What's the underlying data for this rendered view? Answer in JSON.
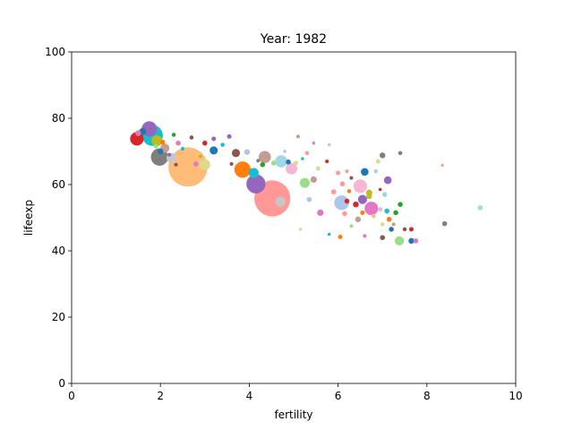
{
  "chart_data": {
    "type": "scatter",
    "title": "Year: 1982",
    "xlabel": "fertility",
    "ylabel": "lifeexp",
    "xlim": [
      0,
      10
    ],
    "ylim": [
      0,
      100
    ],
    "xticks": [
      0,
      2,
      4,
      6,
      8,
      10
    ],
    "yticks": [
      0,
      20,
      40,
      60,
      80,
      100
    ],
    "grid": false,
    "points": [
      {
        "x": 2.62,
        "y": 65.3,
        "size": 920,
        "color": "#ffbb78"
      },
      {
        "x": 4.52,
        "y": 55.8,
        "size": 780,
        "color": "#ff9896"
      },
      {
        "x": 1.82,
        "y": 74.8,
        "size": 260,
        "color": "#17becf"
      },
      {
        "x": 1.75,
        "y": 76.8,
        "size": 140,
        "color": "#9467bd"
      },
      {
        "x": 1.47,
        "y": 73.8,
        "size": 110,
        "color": "#d62728"
      },
      {
        "x": 1.98,
        "y": 68.3,
        "size": 180,
        "color": "#7f7f7f"
      },
      {
        "x": 1.92,
        "y": 73.2,
        "size": 70,
        "color": "#bcbd22"
      },
      {
        "x": 2.1,
        "y": 71.0,
        "size": 50,
        "color": "#c49c94"
      },
      {
        "x": 2.25,
        "y": 68.0,
        "size": 60,
        "color": "#c7c7c7"
      },
      {
        "x": 3.85,
        "y": 64.5,
        "size": 160,
        "color": "#ff7f0e"
      },
      {
        "x": 4.15,
        "y": 60.2,
        "size": 220,
        "color": "#9467bd"
      },
      {
        "x": 4.1,
        "y": 63.5,
        "size": 60,
        "color": "#17becf"
      },
      {
        "x": 4.35,
        "y": 68.3,
        "size": 90,
        "color": "#c49c94"
      },
      {
        "x": 4.72,
        "y": 67.0,
        "size": 90,
        "color": "#9edae5"
      },
      {
        "x": 4.95,
        "y": 64.8,
        "size": 80,
        "color": "#f7b6d2"
      },
      {
        "x": 4.7,
        "y": 54.8,
        "size": 60,
        "color": "#c7c7c7"
      },
      {
        "x": 5.25,
        "y": 60.5,
        "size": 60,
        "color": "#98df8a"
      },
      {
        "x": 6.08,
        "y": 54.5,
        "size": 130,
        "color": "#aec7e8"
      },
      {
        "x": 6.5,
        "y": 59.5,
        "size": 110,
        "color": "#f7b6d2"
      },
      {
        "x": 6.75,
        "y": 52.8,
        "size": 110,
        "color": "#e377c2"
      },
      {
        "x": 6.55,
        "y": 55.5,
        "size": 50,
        "color": "#9467bd"
      },
      {
        "x": 6.6,
        "y": 63.8,
        "size": 35,
        "color": "#1f77b4"
      },
      {
        "x": 6.7,
        "y": 57.5,
        "size": 25,
        "color": "#bcbd22"
      },
      {
        "x": 7.38,
        "y": 43.0,
        "size": 50,
        "color": "#98df8a"
      },
      {
        "x": 7.12,
        "y": 61.3,
        "size": 35,
        "color": "#9467bd"
      },
      {
        "x": 3.0,
        "y": 66.0,
        "size": 70,
        "color": "#dbdb8d"
      },
      {
        "x": 3.2,
        "y": 70.3,
        "size": 40,
        "color": "#1f77b4"
      },
      {
        "x": 3.7,
        "y": 69.5,
        "size": 40,
        "color": "#8c564b"
      },
      {
        "x": 3.0,
        "y": 72.5,
        "size": 15,
        "color": "#d62728"
      },
      {
        "x": 3.2,
        "y": 73.8,
        "size": 12,
        "color": "#9467bd"
      },
      {
        "x": 2.4,
        "y": 72.5,
        "size": 15,
        "color": "#e377c2"
      },
      {
        "x": 2.7,
        "y": 74.2,
        "size": 10,
        "color": "#8c564b"
      },
      {
        "x": 2.3,
        "y": 75.0,
        "size": 10,
        "color": "#2ca02c"
      },
      {
        "x": 2.05,
        "y": 72.8,
        "size": 15,
        "color": "#ff7f0e"
      },
      {
        "x": 1.6,
        "y": 76.0,
        "size": 30,
        "color": "#1f77b4"
      },
      {
        "x": 1.5,
        "y": 75.5,
        "size": 20,
        "color": "#e377c2"
      },
      {
        "x": 2.0,
        "y": 70.0,
        "size": 20,
        "color": "#1f77b4"
      },
      {
        "x": 2.8,
        "y": 66.2,
        "size": 15,
        "color": "#e377c2"
      },
      {
        "x": 3.4,
        "y": 72.0,
        "size": 10,
        "color": "#17becf"
      },
      {
        "x": 3.55,
        "y": 74.5,
        "size": 12,
        "color": "#9467bd"
      },
      {
        "x": 3.6,
        "y": 66.2,
        "size": 8,
        "color": "#8c564b"
      },
      {
        "x": 3.95,
        "y": 69.8,
        "size": 20,
        "color": "#aec7e8"
      },
      {
        "x": 4.3,
        "y": 66.0,
        "size": 15,
        "color": "#2ca02c"
      },
      {
        "x": 4.55,
        "y": 66.5,
        "size": 15,
        "color": "#98df8a"
      },
      {
        "x": 4.88,
        "y": 66.8,
        "size": 15,
        "color": "#1f77b4"
      },
      {
        "x": 5.05,
        "y": 66.5,
        "size": 12,
        "color": "#dbdb8d"
      },
      {
        "x": 5.1,
        "y": 74.5,
        "size": 8,
        "color": "#c49c94"
      },
      {
        "x": 5.3,
        "y": 69.5,
        "size": 10,
        "color": "#ff9896"
      },
      {
        "x": 5.45,
        "y": 61.5,
        "size": 25,
        "color": "#c49c94"
      },
      {
        "x": 5.55,
        "y": 64.8,
        "size": 12,
        "color": "#dbdb8d"
      },
      {
        "x": 5.35,
        "y": 55.5,
        "size": 15,
        "color": "#aec7e8"
      },
      {
        "x": 5.6,
        "y": 51.5,
        "size": 25,
        "color": "#e377c2"
      },
      {
        "x": 5.9,
        "y": 57.8,
        "size": 15,
        "color": "#ff9896"
      },
      {
        "x": 6.0,
        "y": 63.5,
        "size": 12,
        "color": "#ff9896"
      },
      {
        "x": 6.1,
        "y": 60.2,
        "size": 15,
        "color": "#ff9896"
      },
      {
        "x": 6.15,
        "y": 51.2,
        "size": 15,
        "color": "#ff9896"
      },
      {
        "x": 6.2,
        "y": 55.0,
        "size": 15,
        "color": "#d62728"
      },
      {
        "x": 6.4,
        "y": 54.0,
        "size": 20,
        "color": "#d62728"
      },
      {
        "x": 6.45,
        "y": 49.5,
        "size": 20,
        "color": "#c49c94"
      },
      {
        "x": 6.55,
        "y": 51.5,
        "size": 12,
        "color": "#ff7f0e"
      },
      {
        "x": 6.7,
        "y": 56.5,
        "size": 20,
        "color": "#bcbd22"
      },
      {
        "x": 6.9,
        "y": 67.0,
        "size": 12,
        "color": "#dbdb8d"
      },
      {
        "x": 7.0,
        "y": 68.8,
        "size": 20,
        "color": "#7f7f7f"
      },
      {
        "x": 7.05,
        "y": 57.0,
        "size": 15,
        "color": "#9edae5"
      },
      {
        "x": 7.1,
        "y": 52.0,
        "size": 15,
        "color": "#17becf"
      },
      {
        "x": 7.15,
        "y": 49.5,
        "size": 15,
        "color": "#ff7f0e"
      },
      {
        "x": 7.2,
        "y": 46.5,
        "size": 15,
        "color": "#1f77b4"
      },
      {
        "x": 7.3,
        "y": 51.5,
        "size": 15,
        "color": "#2ca02c"
      },
      {
        "x": 7.4,
        "y": 54.0,
        "size": 15,
        "color": "#2ca02c"
      },
      {
        "x": 7.5,
        "y": 46.5,
        "size": 10,
        "color": "#8c564b"
      },
      {
        "x": 7.65,
        "y": 46.5,
        "size": 12,
        "color": "#d62728"
      },
      {
        "x": 7.65,
        "y": 43.0,
        "size": 20,
        "color": "#1f77b4"
      },
      {
        "x": 7.75,
        "y": 43.0,
        "size": 15,
        "color": "#e377c2"
      },
      {
        "x": 7.0,
        "y": 44.0,
        "size": 15,
        "color": "#8c564b"
      },
      {
        "x": 7.4,
        "y": 69.5,
        "size": 10,
        "color": "#7f7f7f"
      },
      {
        "x": 6.05,
        "y": 44.2,
        "size": 12,
        "color": "#ff7f0e"
      },
      {
        "x": 6.6,
        "y": 44.5,
        "size": 8,
        "color": "#e377c2"
      },
      {
        "x": 6.2,
        "y": 64.0,
        "size": 8,
        "color": "#ff9896"
      },
      {
        "x": 5.75,
        "y": 67.0,
        "size": 8,
        "color": "#d62728"
      },
      {
        "x": 6.3,
        "y": 62.0,
        "size": 8,
        "color": "#8c564b"
      },
      {
        "x": 6.85,
        "y": 64.0,
        "size": 10,
        "color": "#9edae5"
      },
      {
        "x": 6.95,
        "y": 52.5,
        "size": 12,
        "color": "#c7c7c7"
      },
      {
        "x": 7.0,
        "y": 48.0,
        "size": 10,
        "color": "#dbdb8d"
      },
      {
        "x": 8.4,
        "y": 48.2,
        "size": 15,
        "color": "#7f7f7f"
      },
      {
        "x": 8.35,
        "y": 65.8,
        "size": 5,
        "color": "#ff9896"
      },
      {
        "x": 9.2,
        "y": 53.0,
        "size": 15,
        "color": "#9edae5"
      },
      {
        "x": 5.45,
        "y": 72.5,
        "size": 6,
        "color": "#e377c2"
      },
      {
        "x": 5.8,
        "y": 72.0,
        "size": 6,
        "color": "#c7c7c7"
      },
      {
        "x": 4.8,
        "y": 70.0,
        "size": 6,
        "color": "#aec7e8"
      },
      {
        "x": 5.2,
        "y": 67.8,
        "size": 6,
        "color": "#17becf"
      },
      {
        "x": 4.2,
        "y": 67.2,
        "size": 8,
        "color": "#7f7f7f"
      },
      {
        "x": 2.5,
        "y": 70.8,
        "size": 8,
        "color": "#17becf"
      },
      {
        "x": 2.9,
        "y": 68.5,
        "size": 8,
        "color": "#bcbd22"
      },
      {
        "x": 2.35,
        "y": 66.0,
        "size": 8,
        "color": "#8c564b"
      },
      {
        "x": 2.2,
        "y": 69.0,
        "size": 8,
        "color": "#9467bd"
      },
      {
        "x": 1.9,
        "y": 71.5,
        "size": 10,
        "color": "#98df8a"
      },
      {
        "x": 6.25,
        "y": 58.0,
        "size": 10,
        "color": "#ff7f0e"
      },
      {
        "x": 6.8,
        "y": 50.5,
        "size": 10,
        "color": "#ffbb78"
      },
      {
        "x": 7.25,
        "y": 48.0,
        "size": 8,
        "color": "#c49c94"
      },
      {
        "x": 6.3,
        "y": 47.5,
        "size": 8,
        "color": "#98df8a"
      },
      {
        "x": 5.8,
        "y": 45.0,
        "size": 6,
        "color": "#17becf"
      },
      {
        "x": 5.15,
        "y": 46.5,
        "size": 6,
        "color": "#dbdb8d"
      },
      {
        "x": 6.95,
        "y": 58.5,
        "size": 6,
        "color": "#d62728"
      }
    ]
  }
}
